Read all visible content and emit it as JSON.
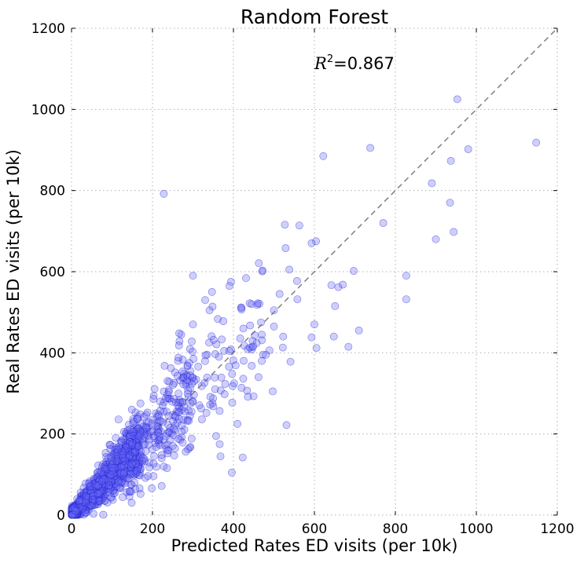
{
  "chart_data": {
    "type": "scatter",
    "title": "Random Forest",
    "xlabel": "Predicted Rates ED visits (per 10k)",
    "ylabel": "Real Rates ED visits (per 10k)",
    "xlim": [
      0,
      1200
    ],
    "ylim": [
      0,
      1200
    ],
    "xticks": [
      "0",
      "200",
      "400",
      "600",
      "800",
      "1000",
      "1200"
    ],
    "yticks": [
      "0",
      "200",
      "400",
      "600",
      "800",
      "1000",
      "1200"
    ],
    "grid": true,
    "reference_line": "y = x",
    "annotation": {
      "lhs": "R",
      "sup": "2",
      "rhs": "=0.867"
    },
    "colors": {
      "points": "#6b6bf5",
      "point_edge": "#1a1ad0",
      "reference_line": "#808080"
    },
    "series": [
      {
        "outliers": [
          [
            953,
            1025
          ],
          [
            738,
            905
          ],
          [
            622,
            885
          ],
          [
            980,
            902
          ],
          [
            1148,
            918
          ],
          [
            937,
            873
          ],
          [
            890,
            818
          ],
          [
            935,
            770
          ],
          [
            228,
            792
          ],
          [
            770,
            720
          ],
          [
            944,
            698
          ],
          [
            900,
            680
          ],
          [
            527,
            716
          ],
          [
            563,
            714
          ],
          [
            604,
            675
          ],
          [
            593,
            670
          ],
          [
            529,
            658
          ],
          [
            697,
            602
          ],
          [
            827,
            590
          ],
          [
            827,
            532
          ],
          [
            300,
            590
          ],
          [
            538,
            605
          ],
          [
            472,
            603
          ],
          [
            394,
            575
          ],
          [
            390,
            565
          ],
          [
            347,
            550
          ],
          [
            557,
            577
          ],
          [
            558,
            532
          ],
          [
            514,
            545
          ],
          [
            642,
            567
          ],
          [
            670,
            568
          ],
          [
            659,
            562
          ],
          [
            651,
            515
          ],
          [
            600,
            470
          ],
          [
            605,
            412
          ],
          [
            648,
            440
          ],
          [
            684,
            415
          ],
          [
            710,
            455
          ],
          [
            593,
            438
          ],
          [
            468,
            475
          ],
          [
            470,
            445
          ],
          [
            489,
            406
          ],
          [
            523,
            440
          ],
          [
            522,
            413
          ],
          [
            541,
            378
          ],
          [
            497,
            305
          ],
          [
            531,
            222
          ],
          [
            410,
            225
          ],
          [
            357,
            195
          ],
          [
            368,
            145
          ],
          [
            423,
            142
          ],
          [
            396,
            105
          ],
          [
            366,
            175
          ],
          [
            440,
            522
          ],
          [
            460,
            522
          ],
          [
            500,
            505
          ],
          [
            500,
            465
          ],
          [
            341,
            505
          ],
          [
            330,
            530
          ],
          [
            300,
            470
          ],
          [
            445,
            368
          ],
          [
            440,
            413
          ],
          [
            449,
            416
          ],
          [
            470,
            380
          ],
          [
            462,
            340
          ],
          [
            480,
            395
          ],
          [
            340,
            425
          ],
          [
            351,
            432
          ],
          [
            355,
            397
          ],
          [
            331,
            394
          ],
          [
            390,
            405
          ],
          [
            371,
            433
          ],
          [
            375,
            478
          ],
          [
            420,
            507
          ],
          [
            445,
            520
          ],
          [
            378,
            298
          ],
          [
            397,
            277
          ],
          [
            420,
            314
          ],
          [
            398,
            318
          ],
          [
            303,
            330
          ],
          [
            335,
            339
          ],
          [
            354,
            339
          ],
          [
            322,
            318
          ],
          [
            291,
            375
          ],
          [
            299,
            403
          ],
          [
            264,
            388
          ],
          [
            271,
            445
          ],
          [
            266,
            448
          ],
          [
            297,
            428
          ],
          [
            313,
            366
          ],
          [
            293,
            344
          ],
          [
            350,
            268
          ],
          [
            320,
            263
          ],
          [
            230,
            368
          ],
          [
            205,
            311
          ]
        ]
      }
    ]
  }
}
